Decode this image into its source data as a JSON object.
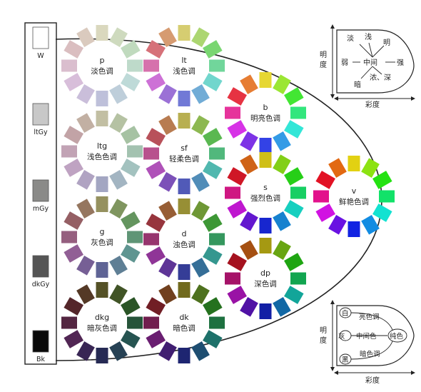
{
  "colors": {
    "background": "#ffffff",
    "line": "#222222",
    "text": "#222222"
  },
  "gray_scale": [
    {
      "code": "W",
      "swatch": "#ffffff"
    },
    {
      "code": "ltGy",
      "swatch": "#c8c8c8"
    },
    {
      "code": "mGy",
      "swatch": "#8a8a88"
    },
    {
      "code": "dkGy",
      "swatch": "#555555"
    },
    {
      "code": "Bk",
      "swatch": "#0a0a0a"
    }
  ],
  "tone_wheels": [
    {
      "code": "p",
      "name": "淡色调",
      "sat": 0.28,
      "light": 0.8
    },
    {
      "code": "lt",
      "name": "浅色调",
      "sat": 0.55,
      "light": 0.64
    },
    {
      "code": "b",
      "name": "明亮色调",
      "sat": 0.78,
      "light": 0.55
    },
    {
      "code": "ltg",
      "name": "浅色色调",
      "sat": 0.2,
      "light": 0.7
    },
    {
      "code": "sf",
      "name": "轻柔色调",
      "sat": 0.42,
      "light": 0.52
    },
    {
      "code": "s",
      "name": "强烈色调",
      "sat": 0.8,
      "light": 0.45
    },
    {
      "code": "v",
      "name": "鲜艳色调",
      "sat": 0.85,
      "light": 0.48
    },
    {
      "code": "g",
      "name": "灰色调",
      "sat": 0.22,
      "light": 0.48
    },
    {
      "code": "d",
      "name": "浊色调",
      "sat": 0.48,
      "light": 0.4
    },
    {
      "code": "dp",
      "name": "深色调",
      "sat": 0.8,
      "light": 0.36
    },
    {
      "code": "dkg",
      "name": "暗灰色调",
      "sat": 0.38,
      "light": 0.24
    },
    {
      "code": "dk",
      "name": "暗色调",
      "sat": 0.58,
      "light": 0.28
    }
  ],
  "legend_top": {
    "words": [
      "淡",
      "浅",
      "明",
      "弱",
      "中间",
      "强",
      "浓、深",
      "暗"
    ],
    "y_axis": "明度",
    "x_axis": "彩度"
  },
  "legend_bottom": {
    "words": [
      "白",
      "亮色调",
      "灰",
      "中间色",
      "纯色",
      "黑",
      "暗色调"
    ],
    "y_axis": "明度",
    "x_axis": "彩度"
  }
}
